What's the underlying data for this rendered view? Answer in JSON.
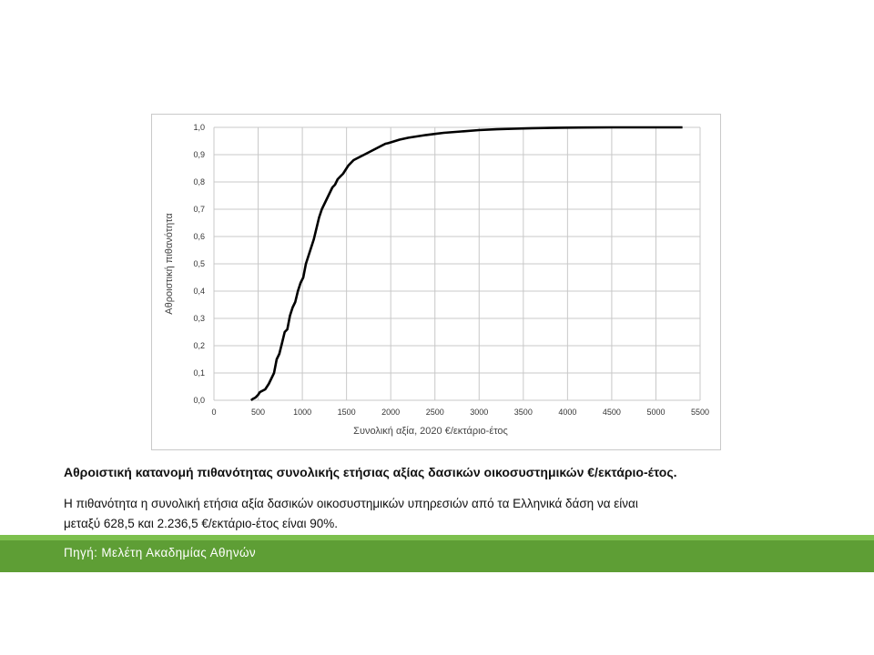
{
  "caption": {
    "title": "Αθροιστική κατανομή πιθανότητας συνολικής ετήσιας αξίας δασικών οικοσυστημικών €/εκτάριο-έτος.",
    "body_line1": "Η πιθανότητα η συνολική ετήσια αξία δασικών οικοσυστημικών υπηρεσιών από τα Ελληνικά δάση να είναι",
    "body_line2": "μεταξύ 628,5 και 2.236,5 €/εκτάριο-έτος είναι 90%."
  },
  "footer": {
    "source": "Πηγή: Μελέτη Ακαδημίας Αθηνών"
  },
  "colors": {
    "accent_band": "#5e9e35",
    "accent_band_top": "#7dc04e",
    "curve": "#000000",
    "grid": "#c8c8c8"
  },
  "chart_data": {
    "type": "line",
    "title": "",
    "xlabel": "Συνολική αξία, 2020 €/εκτάριο-έτος",
    "ylabel": "Αθροιστική πιθανότητα",
    "xlim": [
      0,
      5500
    ],
    "ylim": [
      0,
      1.0
    ],
    "grid": true,
    "legend": "none",
    "x_ticks": [
      0,
      500,
      1000,
      1500,
      2000,
      2500,
      3000,
      3500,
      4000,
      4500,
      5000,
      5500
    ],
    "x_tick_labels": [
      "0",
      "500",
      "1000",
      "1500",
      "2000",
      "2500",
      "3000",
      "3500",
      "4000",
      "4500",
      "5000",
      "5500"
    ],
    "y_ticks": [
      0,
      0.1,
      0.2,
      0.3,
      0.4,
      0.5,
      0.6,
      0.7,
      0.8,
      0.9,
      1.0
    ],
    "y_tick_labels": [
      "0,0",
      "0,1",
      "0,2",
      "0,3",
      "0,4",
      "0,5",
      "0,6",
      "0,7",
      "0,8",
      "0,9",
      "1,0"
    ],
    "series": [
      {
        "x": [
          420,
          440,
          470,
          500,
          520,
          550,
          580,
          620,
          650,
          680,
          710,
          740,
          770,
          800,
          830,
          860,
          890,
          920,
          950,
          980,
          1010,
          1040,
          1070,
          1100,
          1130,
          1160,
          1190,
          1220,
          1250,
          1280,
          1310,
          1340,
          1370,
          1400,
          1430,
          1460,
          1490,
          1520,
          1550,
          1580,
          1610,
          1640,
          1670,
          1700,
          1730,
          1760,
          1790,
          1820,
          1850,
          1880,
          1910,
          1940,
          1970,
          2000,
          2100,
          2200,
          2300,
          2400,
          2500,
          2600,
          2800,
          3000,
          3200,
          3400,
          3600,
          3800,
          4000,
          4500,
          5000,
          5300
        ],
        "y": [
          0.0,
          0.005,
          0.01,
          0.02,
          0.03,
          0.035,
          0.04,
          0.06,
          0.08,
          0.1,
          0.15,
          0.17,
          0.21,
          0.25,
          0.26,
          0.31,
          0.34,
          0.36,
          0.4,
          0.43,
          0.45,
          0.5,
          0.53,
          0.56,
          0.59,
          0.63,
          0.67,
          0.7,
          0.72,
          0.74,
          0.76,
          0.78,
          0.79,
          0.81,
          0.82,
          0.83,
          0.845,
          0.86,
          0.87,
          0.88,
          0.885,
          0.89,
          0.895,
          0.9,
          0.905,
          0.91,
          0.915,
          0.92,
          0.925,
          0.93,
          0.935,
          0.94,
          0.942,
          0.945,
          0.955,
          0.962,
          0.967,
          0.972,
          0.976,
          0.98,
          0.985,
          0.99,
          0.993,
          0.995,
          0.997,
          0.998,
          0.999,
          1.0,
          1.0,
          1.0
        ]
      }
    ]
  }
}
